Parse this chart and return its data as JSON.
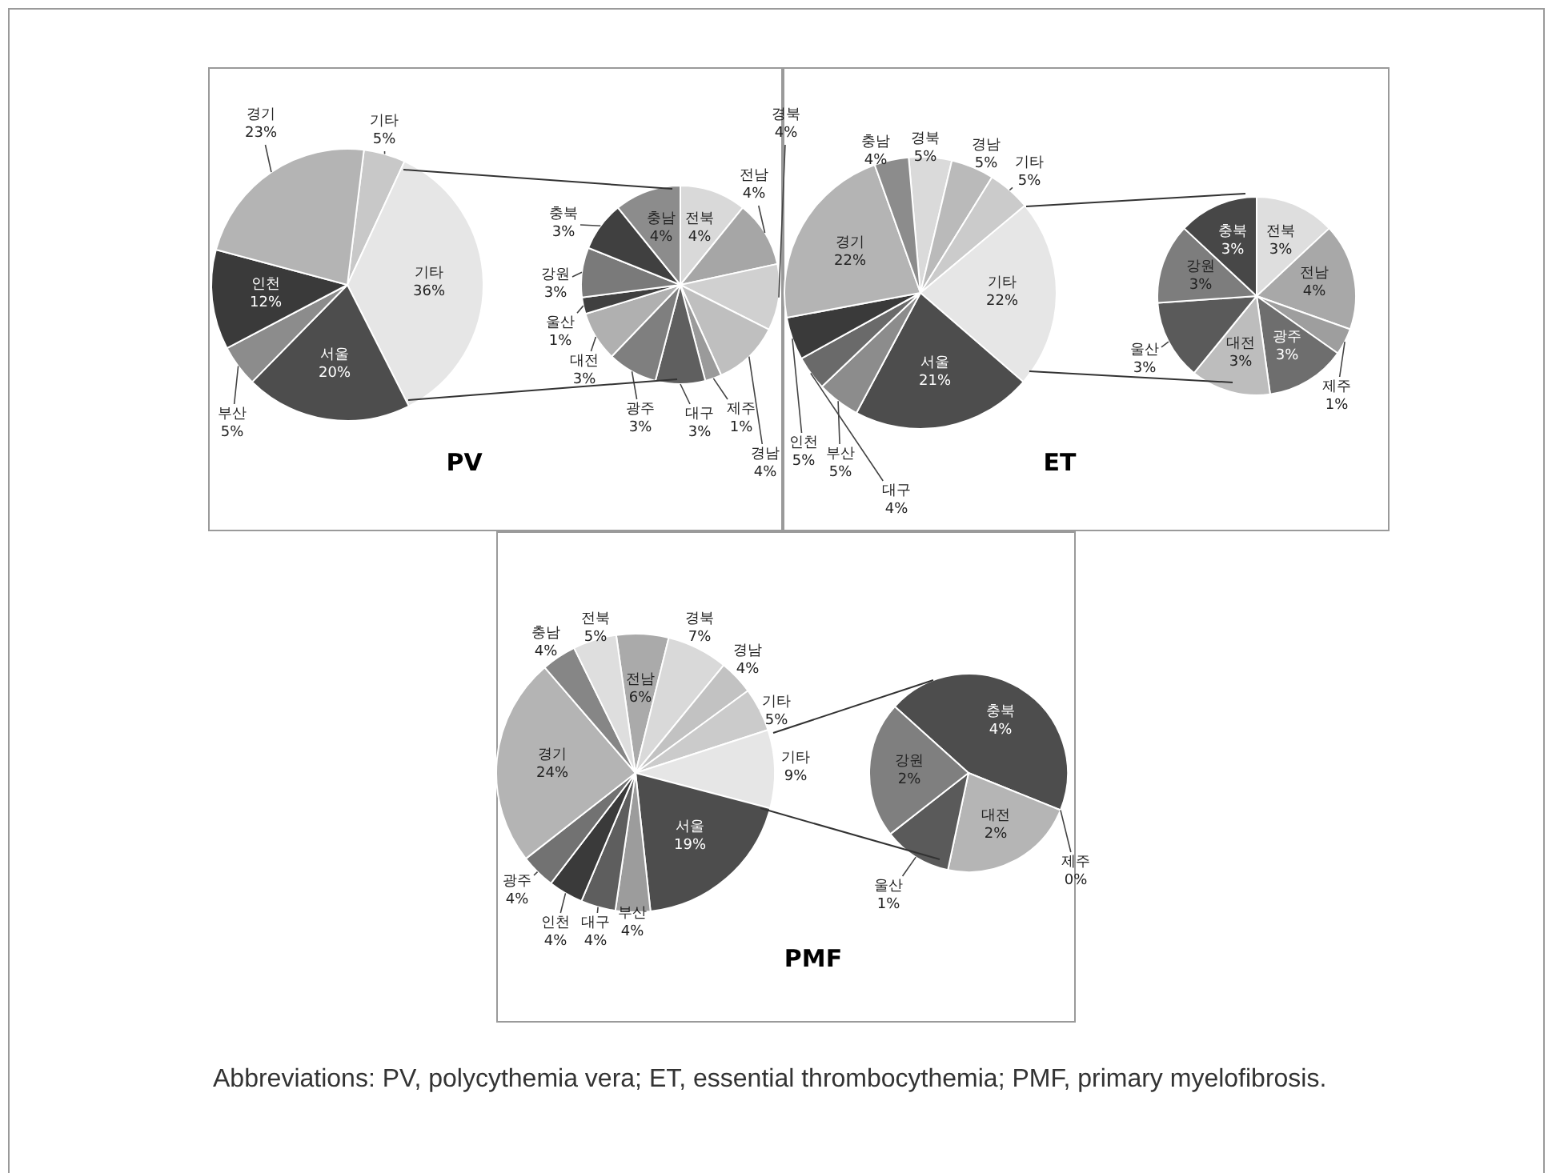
{
  "chart_data": [
    {
      "type": "pie",
      "title": "PV",
      "categories": [
        "기타",
        "기타",
        "서울",
        "부산",
        "인천",
        "경기"
      ],
      "values": [
        5,
        36,
        20,
        5,
        12,
        23
      ],
      "value_labels": [
        "5%",
        "36%",
        "20%",
        "5%",
        "12%",
        "23%"
      ],
      "colors": [
        "#c8c8c8",
        "#e6e6e6",
        "#4d4d4d",
        "#8c8c8c",
        "#3a3a3a",
        "#b4b4b4"
      ]
    },
    {
      "type": "pie",
      "categories": [
        "전북",
        "전남",
        "경북",
        "경남",
        "제주",
        "대구",
        "광주",
        "대전",
        "울산",
        "강원",
        "충북",
        "충남"
      ],
      "values": [
        4,
        4,
        4,
        4,
        1,
        3,
        3,
        3,
        1,
        3,
        3,
        4
      ],
      "value_labels": [
        "4%",
        "4%",
        "4%",
        "4%",
        "1%",
        "3%",
        "3%",
        "3%",
        "1%",
        "3%",
        "3%",
        "4%"
      ],
      "colors": [
        "#d9d9d9",
        "#a6a6a6",
        "#d0d0d0",
        "#bfbfbf",
        "#9a9a9a",
        "#5f5f5f",
        "#7f7f7f",
        "#b0b0b0",
        "#404040",
        "#7a7a7a",
        "#404040",
        "#8c8c8c"
      ]
    },
    {
      "type": "pie",
      "title": "ET",
      "categories": [
        "경북",
        "경남",
        "기타",
        "기타",
        "서울",
        "부산",
        "대구",
        "인천",
        "경기",
        "충남"
      ],
      "values": [
        5,
        5,
        5,
        22,
        21,
        5,
        4,
        5,
        22,
        4
      ],
      "value_labels": [
        "5%",
        "5%",
        "5%",
        "22%",
        "21%",
        "5%",
        "4%",
        "5%",
        "22%",
        "4%"
      ],
      "colors": [
        "#dadada",
        "#bababa",
        "#cbcbcb",
        "#e6e6e6",
        "#4d4d4d",
        "#8c8c8c",
        "#6a6a6a",
        "#3a3a3a",
        "#b4b4b4",
        "#8c8c8c"
      ]
    },
    {
      "type": "pie",
      "categories": [
        "전북",
        "전남",
        "제주",
        "광주",
        "대전",
        "울산",
        "강원",
        "충북"
      ],
      "values": [
        3,
        4,
        1,
        3,
        3,
        3,
        3,
        3
      ],
      "value_labels": [
        "3%",
        "4%",
        "1%",
        "3%",
        "3%",
        "3%",
        "3%",
        "3%"
      ],
      "colors": [
        "#dedede",
        "#a8a8a8",
        "#9e9e9e",
        "#6e6e6e",
        "#bdbdbd",
        "#5a5a5a",
        "#7d7d7d",
        "#474747"
      ]
    },
    {
      "type": "pie",
      "title": "PMF",
      "categories": [
        "전남",
        "경북",
        "경남",
        "기타",
        "기타",
        "서울",
        "부산",
        "대구",
        "인천",
        "광주",
        "경기",
        "충남",
        "전북"
      ],
      "values": [
        6,
        7,
        4,
        5,
        9,
        19,
        4,
        4,
        4,
        4,
        24,
        4,
        5
      ],
      "value_labels": [
        "6%",
        "7%",
        "4%",
        "5%",
        "9%",
        "19%",
        "4%",
        "4%",
        "4%",
        "4%",
        "24%",
        "4%",
        "5%"
      ],
      "colors": [
        "#aaaaaa",
        "#d9d9d9",
        "#c2c2c2",
        "#cbcbcb",
        "#e6e6e6",
        "#4d4d4d",
        "#9c9c9c",
        "#5e5e5e",
        "#3a3a3a",
        "#727272",
        "#b4b4b4",
        "#868686",
        "#dedede"
      ],
      "annotations": [
        "Abbreviations: PV, polycythemia vera; ET, essential thrombocythemia; PMF, primary myelofibrosis."
      ]
    },
    {
      "type": "pie",
      "categories": [
        "충북",
        "제주",
        "대전",
        "울산",
        "강원"
      ],
      "values": [
        4,
        0,
        2,
        1,
        2
      ],
      "value_labels": [
        "4%",
        "0%",
        "2%",
        "1%",
        "2%"
      ],
      "colors": [
        "#4d4d4d",
        "#b0b0b0",
        "#b5b5b5",
        "#5a5a5a",
        "#7f7f7f"
      ]
    }
  ]
}
